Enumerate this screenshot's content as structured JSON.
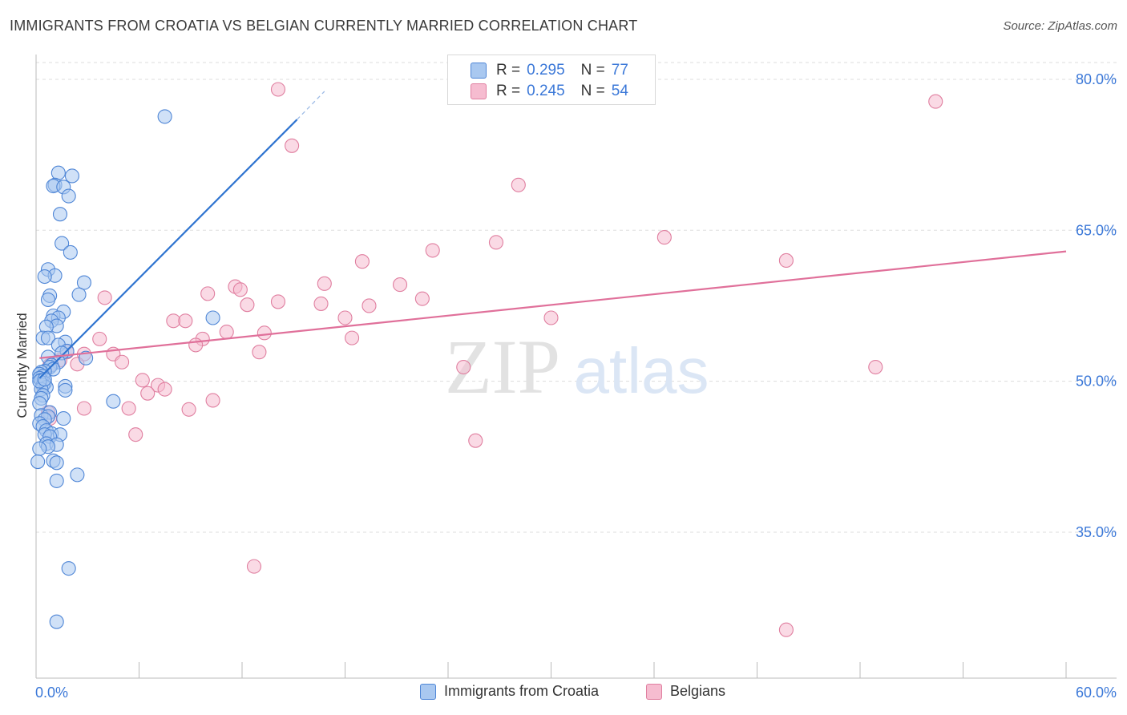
{
  "title": "IMMIGRANTS FROM CROATIA VS BELGIAN CURRENTLY MARRIED CORRELATION CHART",
  "source": "Source: ZipAtlas.com",
  "watermark": {
    "zip": "ZIP",
    "atlas": "atlas"
  },
  "legend": {
    "series1": {
      "r_label": "R =",
      "r_value": "0.295",
      "n_label": "N =",
      "n_value": "77"
    },
    "series2": {
      "r_label": "R =",
      "r_value": "0.245",
      "n_label": "N =",
      "n_value": "54"
    }
  },
  "chart_data": {
    "type": "scatter",
    "title": "IMMIGRANTS FROM CROATIA VS BELGIAN CURRENTLY MARRIED CORRELATION CHART",
    "xlabel": "",
    "ylabel": "Currently Married",
    "xlim": [
      0,
      60
    ],
    "ylim": [
      20.5,
      83.5
    ],
    "x_tick_labels": [
      "0.0%",
      "60.0%"
    ],
    "y_ticks": [
      35,
      50,
      65,
      80
    ],
    "y_tick_labels": [
      "35.0%",
      "50.0%",
      "65.0%",
      "80.0%"
    ],
    "legend_position": "top-center",
    "colors": {
      "series1_fill": "#a9c8f0",
      "series1_stroke": "#4f86d6",
      "series1_line": "#2f74d0",
      "series2_fill": "#f6bcd0",
      "series2_stroke": "#e07fa0",
      "series2_line": "#e0709a",
      "grid": "#dddddd",
      "axis": "#bbbbbb",
      "tick_text": "#3b78d8"
    },
    "series": [
      {
        "name": "Immigrants from Croatia",
        "trendline": {
          "x": [
            0.2,
            15.2
          ],
          "y": [
            50.3,
            76.0
          ],
          "dashed_to": [
            16.8,
            78.8
          ]
        },
        "points": [
          [
            7.5,
            76.3
          ],
          [
            1.3,
            70.7
          ],
          [
            2.1,
            70.4
          ],
          [
            1.1,
            69.5
          ],
          [
            1.0,
            69.4
          ],
          [
            1.6,
            69.3
          ],
          [
            1.9,
            68.4
          ],
          [
            1.4,
            66.6
          ],
          [
            1.5,
            63.7
          ],
          [
            2.0,
            62.8
          ],
          [
            0.7,
            61.1
          ],
          [
            1.1,
            60.5
          ],
          [
            0.5,
            60.4
          ],
          [
            2.8,
            59.8
          ],
          [
            2.5,
            58.6
          ],
          [
            0.8,
            58.5
          ],
          [
            0.7,
            58.1
          ],
          [
            1.6,
            56.9
          ],
          [
            1.0,
            56.5
          ],
          [
            1.3,
            56.3
          ],
          [
            10.3,
            56.3
          ],
          [
            0.9,
            56.0
          ],
          [
            1.2,
            55.5
          ],
          [
            0.6,
            55.4
          ],
          [
            0.4,
            54.3
          ],
          [
            0.7,
            54.3
          ],
          [
            1.7,
            53.9
          ],
          [
            1.3,
            53.6
          ],
          [
            1.8,
            53.0
          ],
          [
            1.5,
            52.8
          ],
          [
            0.7,
            52.4
          ],
          [
            2.9,
            52.3
          ],
          [
            1.3,
            51.9
          ],
          [
            0.9,
            51.6
          ],
          [
            0.8,
            51.4
          ],
          [
            1.0,
            51.2
          ],
          [
            0.5,
            51.0
          ],
          [
            0.3,
            50.9
          ],
          [
            0.2,
            50.7
          ],
          [
            0.4,
            50.5
          ],
          [
            0.2,
            50.3
          ],
          [
            0.3,
            50.1
          ],
          [
            0.5,
            49.8
          ],
          [
            0.4,
            49.6
          ],
          [
            1.7,
            49.5
          ],
          [
            0.6,
            49.4
          ],
          [
            0.3,
            49.2
          ],
          [
            1.7,
            49.1
          ],
          [
            0.4,
            48.6
          ],
          [
            0.3,
            48.3
          ],
          [
            4.5,
            48.0
          ],
          [
            0.2,
            47.8
          ],
          [
            0.8,
            46.9
          ],
          [
            0.3,
            46.6
          ],
          [
            0.7,
            46.5
          ],
          [
            1.6,
            46.3
          ],
          [
            0.5,
            46.2
          ],
          [
            0.2,
            45.8
          ],
          [
            0.4,
            45.5
          ],
          [
            0.6,
            45.1
          ],
          [
            0.9,
            44.8
          ],
          [
            0.5,
            44.7
          ],
          [
            1.4,
            44.7
          ],
          [
            0.8,
            44.5
          ],
          [
            0.6,
            43.8
          ],
          [
            1.2,
            43.7
          ],
          [
            0.7,
            43.5
          ],
          [
            0.2,
            43.3
          ],
          [
            1.0,
            42.1
          ],
          [
            0.1,
            42.0
          ],
          [
            1.2,
            41.9
          ],
          [
            2.4,
            40.7
          ],
          [
            1.2,
            40.1
          ],
          [
            1.9,
            31.4
          ],
          [
            1.2,
            26.1
          ],
          [
            0.2,
            50.0
          ],
          [
            0.5,
            50.2
          ]
        ]
      },
      {
        "name": "Belgians",
        "trendline": {
          "x": [
            0.2,
            60.0
          ],
          "y": [
            52.3,
            62.9
          ]
        },
        "points": [
          [
            14.1,
            79.0
          ],
          [
            52.4,
            77.8
          ],
          [
            14.9,
            73.4
          ],
          [
            28.1,
            69.5
          ],
          [
            36.6,
            64.3
          ],
          [
            26.8,
            63.8
          ],
          [
            23.1,
            63.0
          ],
          [
            19.0,
            61.9
          ],
          [
            43.7,
            62.0
          ],
          [
            11.6,
            59.4
          ],
          [
            16.8,
            59.7
          ],
          [
            21.2,
            59.6
          ],
          [
            11.9,
            59.1
          ],
          [
            10.0,
            58.7
          ],
          [
            14.1,
            57.9
          ],
          [
            22.5,
            58.2
          ],
          [
            4.0,
            58.3
          ],
          [
            12.3,
            57.6
          ],
          [
            16.6,
            57.7
          ],
          [
            19.4,
            57.5
          ],
          [
            18.0,
            56.3
          ],
          [
            30.0,
            56.3
          ],
          [
            8.0,
            56.0
          ],
          [
            8.7,
            56.0
          ],
          [
            11.1,
            54.9
          ],
          [
            13.3,
            54.8
          ],
          [
            3.7,
            54.2
          ],
          [
            9.7,
            54.2
          ],
          [
            18.4,
            54.3
          ],
          [
            9.3,
            53.6
          ],
          [
            1.8,
            52.9
          ],
          [
            2.8,
            52.7
          ],
          [
            4.5,
            52.7
          ],
          [
            13.0,
            52.9
          ],
          [
            1.4,
            52.1
          ],
          [
            5.0,
            51.9
          ],
          [
            2.4,
            51.7
          ],
          [
            0.8,
            51.6
          ],
          [
            24.9,
            51.4
          ],
          [
            48.9,
            51.4
          ],
          [
            6.2,
            50.1
          ],
          [
            7.1,
            49.6
          ],
          [
            7.5,
            49.2
          ],
          [
            6.5,
            48.8
          ],
          [
            10.3,
            48.1
          ],
          [
            2.8,
            47.3
          ],
          [
            5.4,
            47.3
          ],
          [
            8.9,
            47.2
          ],
          [
            0.7,
            46.9
          ],
          [
            0.8,
            46.3
          ],
          [
            5.8,
            44.7
          ],
          [
            25.6,
            44.1
          ],
          [
            12.7,
            31.6
          ],
          [
            43.7,
            25.3
          ]
        ]
      }
    ]
  },
  "bottom_legend": {
    "series1": "Immigrants from Croatia",
    "series2": "Belgians"
  }
}
